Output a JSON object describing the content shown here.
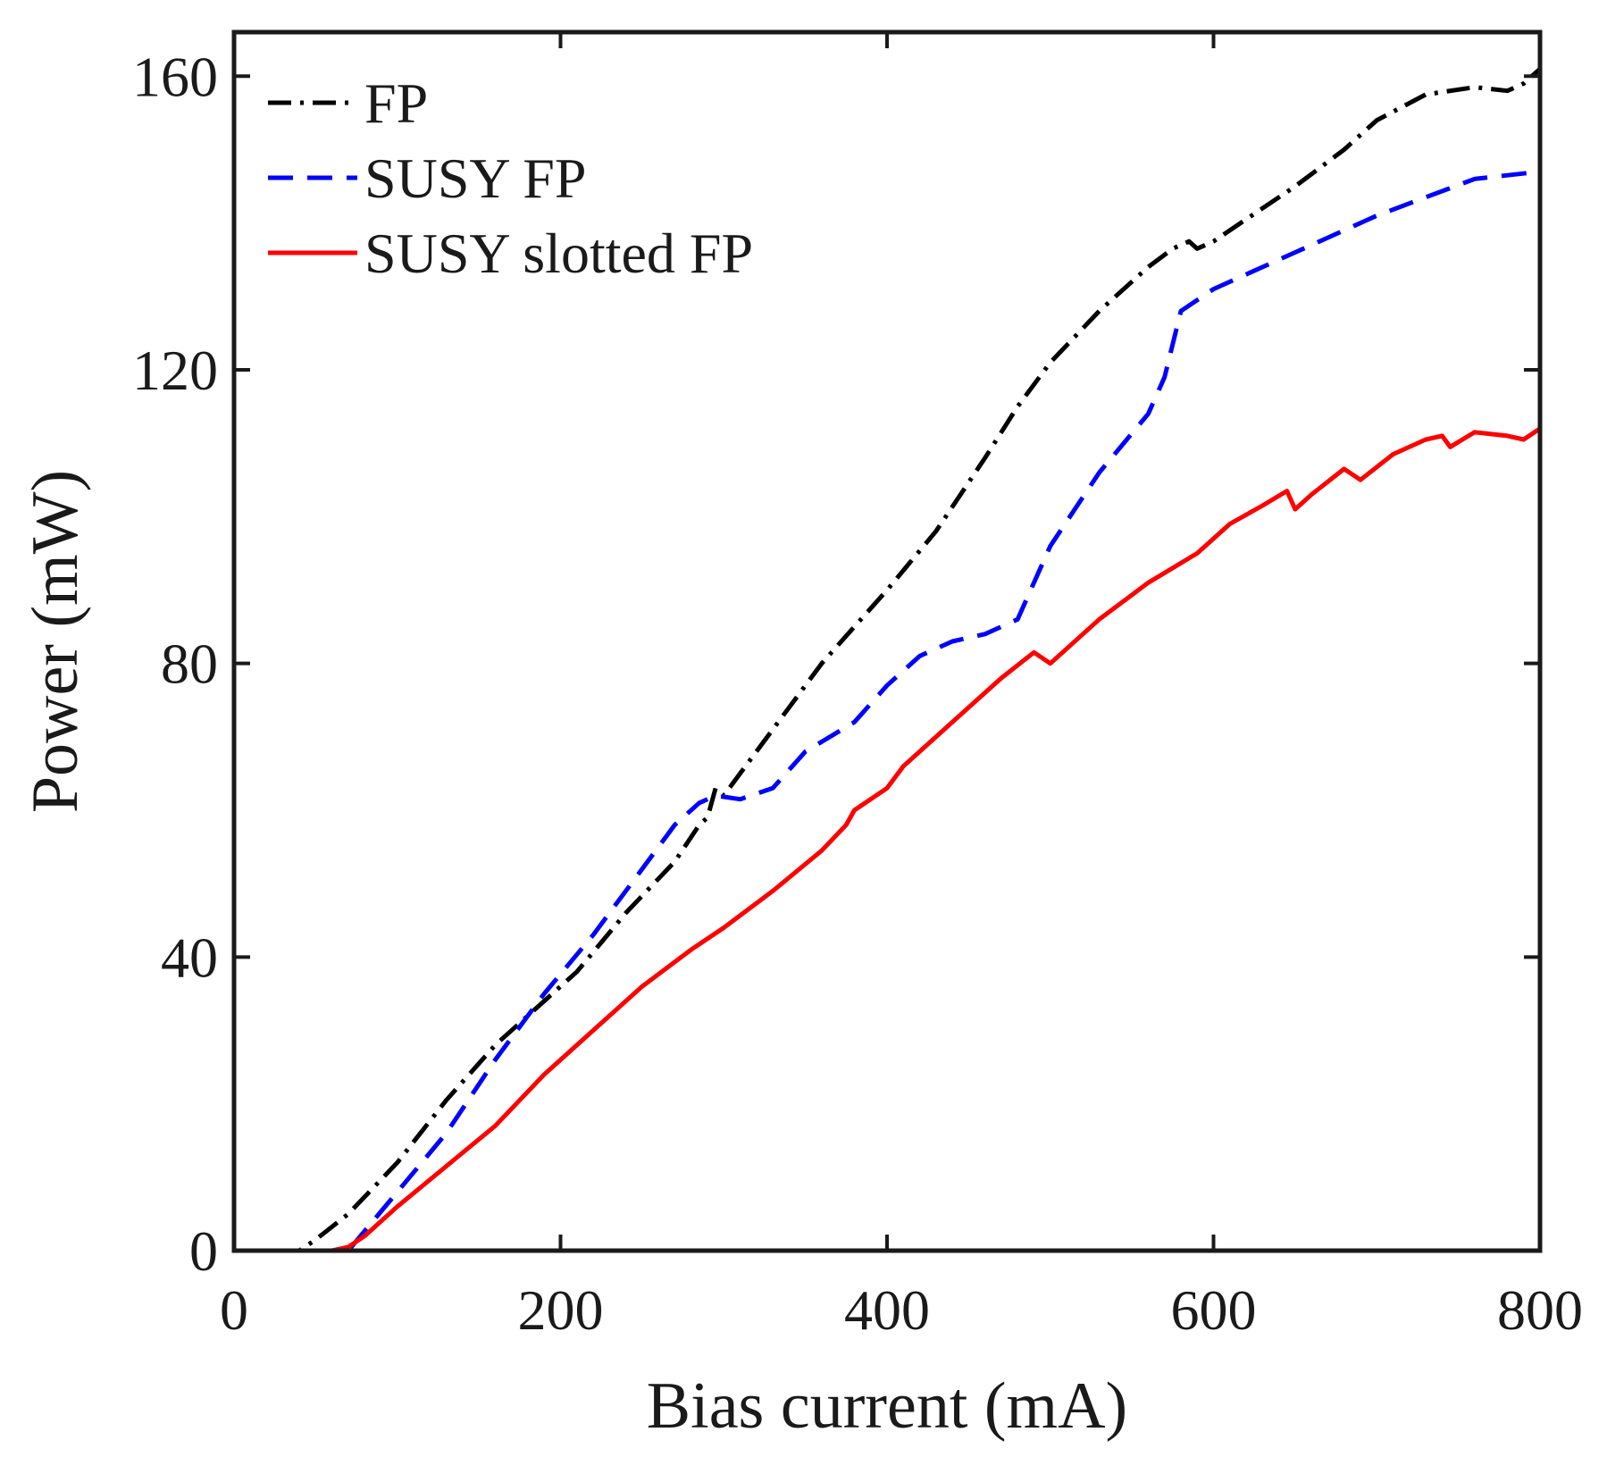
{
  "chart_data": {
    "type": "line",
    "title": "",
    "xlabel": "Bias current (mA)",
    "ylabel": "Power (mW)",
    "xlim": [
      0,
      800
    ],
    "ylim": [
      0,
      166
    ],
    "xticks": [
      0,
      200,
      400,
      600,
      800
    ],
    "yticks": [
      0,
      40,
      80,
      120,
      160
    ],
    "grid": false,
    "legend_position": "top-left",
    "series": [
      {
        "name": "FP",
        "color": "#000000",
        "style": "dash-dot",
        "x": [
          0,
          40,
          50,
          70,
          100,
          130,
          160,
          190,
          210,
          240,
          270,
          285,
          290,
          295,
          300,
          310,
          330,
          360,
          400,
          430,
          460,
          480,
          500,
          530,
          560,
          575,
          585,
          590,
          600,
          620,
          650,
          680,
          700,
          730,
          760,
          780,
          790,
          800
        ],
        "y": [
          0,
          0,
          1.5,
          5,
          12,
          20.5,
          28,
          34,
          38,
          46,
          53,
          58,
          59,
          63,
          62,
          65,
          71,
          80,
          90,
          98,
          108,
          115,
          121,
          128,
          134,
          136.5,
          137.5,
          136.5,
          137.5,
          140.5,
          145,
          150,
          154,
          157.5,
          158.5,
          158,
          159,
          161
        ]
      },
      {
        "name": "SUSY FP",
        "color": "#0000ff",
        "style": "dashed",
        "x": [
          0,
          40,
          60,
          70,
          100,
          130,
          160,
          190,
          220,
          250,
          270,
          285,
          295,
          310,
          330,
          350,
          380,
          400,
          420,
          440,
          460,
          480,
          500,
          530,
          560,
          570,
          580,
          600,
          620,
          650,
          700,
          760,
          800
        ],
        "y": [
          0,
          0,
          0,
          0,
          8,
          16,
          26,
          35,
          43,
          52,
          58,
          61,
          62,
          61.5,
          63,
          68,
          72,
          77,
          81,
          83,
          84,
          86,
          96,
          106,
          114,
          119,
          128,
          131,
          133,
          136,
          141,
          146,
          147
        ]
      },
      {
        "name": "SUSY slotted FP",
        "color": "#ff0000",
        "style": "solid",
        "x": [
          0,
          40,
          60,
          70,
          80,
          100,
          130,
          160,
          190,
          210,
          250,
          280,
          300,
          330,
          360,
          375,
          380,
          400,
          410,
          440,
          470,
          490,
          500,
          530,
          560,
          590,
          610,
          630,
          645,
          650,
          660,
          680,
          690,
          710,
          730,
          740,
          745,
          760,
          780,
          790,
          800
        ],
        "y": [
          0,
          0,
          0,
          0.5,
          2,
          6,
          11.5,
          17,
          24,
          28,
          36,
          41,
          44,
          49,
          54.5,
          58,
          60,
          63,
          66,
          72,
          78,
          81.5,
          80,
          86,
          91,
          95,
          99,
          101.5,
          103.5,
          101,
          103,
          106.5,
          105,
          108.5,
          110.5,
          111,
          109.5,
          111.5,
          111,
          110.5,
          112
        ]
      }
    ]
  }
}
